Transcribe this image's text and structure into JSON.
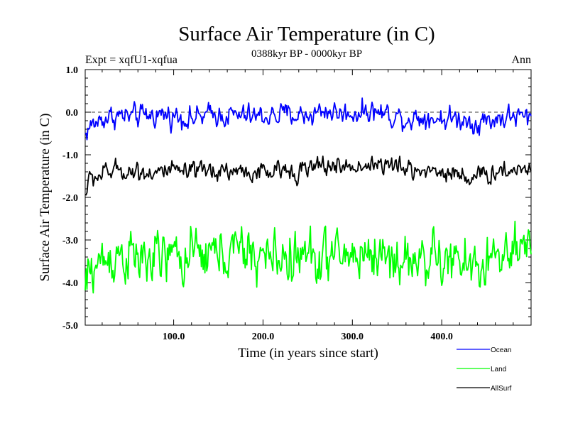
{
  "chart_data": {
    "type": "line",
    "title": "Surface Air Temperature (in C)",
    "subtitle": "0388kyr BP - 0000kyr BP",
    "left_label": "Expt = xqfU1-xqfua",
    "right_label": "Ann",
    "xlabel": "Time (in years since start)",
    "ylabel": "Surface Air Temperature (in C)",
    "xlim": [
      1,
      500
    ],
    "ylim": [
      -5.0,
      1.0
    ],
    "x_ticks": [
      100,
      200,
      300,
      400
    ],
    "x_tick_labels": [
      "100.0",
      "200.0",
      "300.0",
      "400.0"
    ],
    "y_ticks": [
      1.0,
      0.0,
      -1.0,
      -2.0,
      -3.0,
      -4.0,
      -5.0
    ],
    "y_tick_labels": [
      "1.0",
      "0.0",
      "-1.0",
      "-2.0",
      "-3.0",
      "-4.0",
      "-5.0"
    ],
    "reference_line": {
      "y": 0.0,
      "style": "dashed"
    },
    "legend_position": "bottom-right, outside plot",
    "series": [
      {
        "name": "Ocean",
        "color": "#0000ff",
        "mean": -0.15,
        "noise": 0.15,
        "points": [
          [
            1,
            -0.55
          ],
          [
            5,
            -0.35
          ],
          [
            10,
            -0.3
          ],
          [
            20,
            -0.15
          ],
          [
            35,
            -0.08
          ],
          [
            60,
            -0.12
          ],
          [
            80,
            -0.05
          ],
          [
            100,
            -0.08
          ],
          [
            120,
            -0.15
          ],
          [
            150,
            -0.05
          ],
          [
            180,
            -0.1
          ],
          [
            200,
            -0.1
          ],
          [
            230,
            -0.05
          ],
          [
            250,
            -0.08
          ],
          [
            270,
            0.05
          ],
          [
            290,
            -0.05
          ],
          [
            320,
            0.05
          ],
          [
            340,
            -0.05
          ],
          [
            360,
            -0.15
          ],
          [
            380,
            -0.1
          ],
          [
            400,
            -0.15
          ],
          [
            420,
            -0.15
          ],
          [
            440,
            -0.25
          ],
          [
            460,
            -0.15
          ],
          [
            480,
            -0.1
          ],
          [
            500,
            -0.15
          ]
        ]
      },
      {
        "name": "Land",
        "color": "#00ff00",
        "mean": -3.5,
        "noise": 0.35,
        "points": [
          [
            1,
            -4.25
          ],
          [
            5,
            -3.8
          ],
          [
            10,
            -3.65
          ],
          [
            20,
            -3.5
          ],
          [
            40,
            -3.3
          ],
          [
            60,
            -3.5
          ],
          [
            80,
            -3.45
          ],
          [
            100,
            -3.4
          ],
          [
            120,
            -3.4
          ],
          [
            150,
            -3.3
          ],
          [
            180,
            -3.3
          ],
          [
            200,
            -3.4
          ],
          [
            230,
            -3.4
          ],
          [
            250,
            -3.4
          ],
          [
            270,
            -3.4
          ],
          [
            300,
            -3.35
          ],
          [
            320,
            -3.3
          ],
          [
            340,
            -3.4
          ],
          [
            360,
            -3.5
          ],
          [
            380,
            -3.4
          ],
          [
            400,
            -3.5
          ],
          [
            420,
            -3.55
          ],
          [
            440,
            -3.65
          ],
          [
            460,
            -3.4
          ],
          [
            480,
            -3.4
          ],
          [
            500,
            -3.35
          ]
        ]
      },
      {
        "name": "AllSurf",
        "color": "#000000",
        "mean": -1.4,
        "noise": 0.13,
        "points": [
          [
            1,
            -1.95
          ],
          [
            5,
            -1.6
          ],
          [
            10,
            -1.55
          ],
          [
            20,
            -1.45
          ],
          [
            40,
            -1.35
          ],
          [
            60,
            -1.4
          ],
          [
            80,
            -1.4
          ],
          [
            100,
            -1.4
          ],
          [
            120,
            -1.45
          ],
          [
            150,
            -1.35
          ],
          [
            180,
            -1.4
          ],
          [
            200,
            -1.45
          ],
          [
            230,
            -1.35
          ],
          [
            250,
            -1.35
          ],
          [
            270,
            -1.25
          ],
          [
            300,
            -1.3
          ],
          [
            320,
            -1.2
          ],
          [
            340,
            -1.25
          ],
          [
            360,
            -1.35
          ],
          [
            380,
            -1.35
          ],
          [
            400,
            -1.4
          ],
          [
            420,
            -1.45
          ],
          [
            440,
            -1.55
          ],
          [
            460,
            -1.4
          ],
          [
            480,
            -1.35
          ],
          [
            500,
            -1.3
          ]
        ]
      }
    ]
  }
}
